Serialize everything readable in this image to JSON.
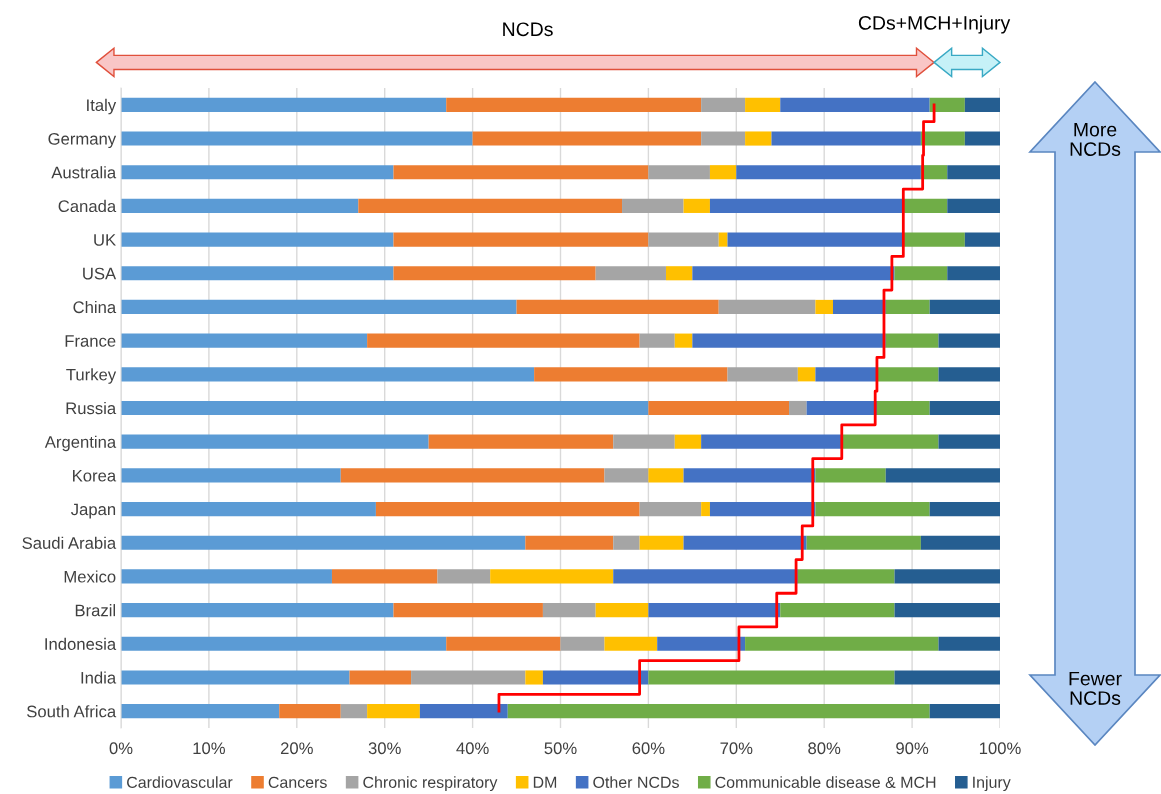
{
  "chart_data": {
    "type": "bar",
    "orientation": "horizontal",
    "stacked": true,
    "categories": [
      "Italy",
      "Germany",
      "Australia",
      "Canada",
      "UK",
      "USA",
      "China",
      "France",
      "Turkey",
      "Russia",
      "Argentina",
      "Korea",
      "Japan",
      "Saudi Arabia",
      "Mexico",
      "Brazil",
      "Indonesia",
      "India",
      "South Africa"
    ],
    "series": [
      {
        "name": "Cardiovascular",
        "color": "#5b9bd5",
        "values": [
          37,
          40,
          31,
          27,
          31,
          31,
          45,
          28,
          47,
          60,
          35,
          25,
          29,
          46,
          24,
          31,
          37,
          26,
          18
        ]
      },
      {
        "name": "Cancers",
        "color": "#ed7d31",
        "values": [
          29,
          26,
          29,
          30,
          29,
          23,
          23,
          31,
          22,
          16,
          21,
          30,
          30,
          10,
          12,
          17,
          13,
          7,
          7
        ]
      },
      {
        "name": "Chronic respiratory",
        "color": "#a5a5a5",
        "values": [
          5,
          5,
          7,
          7,
          8,
          8,
          11,
          4,
          8,
          2,
          7,
          5,
          7,
          3,
          6,
          6,
          5,
          13,
          3
        ]
      },
      {
        "name": "DM",
        "color": "#ffc000",
        "values": [
          4,
          3,
          3,
          3,
          1,
          3,
          2,
          2,
          2,
          0,
          3,
          4,
          1,
          5,
          14,
          6,
          6,
          2,
          6
        ]
      },
      {
        "name": "Other NCDs",
        "color": "#4472c4",
        "values": [
          17,
          17,
          21,
          22,
          20,
          23,
          6,
          22,
          7,
          8,
          16,
          15,
          12,
          14,
          21,
          15,
          10,
          12,
          10
        ]
      },
      {
        "name": "Communicable disease & MCH",
        "color": "#70ad47",
        "values": [
          4,
          5,
          3,
          5,
          7,
          6,
          5,
          6,
          7,
          6,
          11,
          8,
          13,
          13,
          11,
          13,
          22,
          28,
          48
        ]
      },
      {
        "name": "Injury",
        "color": "#255e91",
        "values": [
          4,
          4,
          6,
          6,
          4,
          6,
          8,
          7,
          7,
          8,
          7,
          13,
          8,
          9,
          12,
          12,
          7,
          12,
          8
        ]
      },
      {
        "type": "step",
        "color": "#ff0000",
        "values": [
          92.5,
          91.3,
          91.2,
          89,
          89,
          87.7,
          86.8,
          86.8,
          86,
          85.8,
          82,
          78.7,
          78.7,
          77.5,
          76.8,
          74.6,
          70.3,
          59,
          43
        ]
      }
    ],
    "xlim": [
      0,
      100
    ],
    "xticks": [
      {
        "value": 0,
        "label": "0%"
      },
      {
        "value": 10,
        "label": "10%"
      },
      {
        "value": 20,
        "label": "20%"
      },
      {
        "value": 30,
        "label": "30%"
      },
      {
        "value": 40,
        "label": "40%"
      },
      {
        "value": 50,
        "label": "50%"
      },
      {
        "value": 60,
        "label": "60%"
      },
      {
        "value": 70,
        "label": "70%"
      },
      {
        "value": 80,
        "label": "80%"
      },
      {
        "value": 90,
        "label": "90%"
      },
      {
        "value": 100,
        "label": "100%"
      }
    ],
    "grid": "x",
    "legend": "bottom",
    "annotations": [
      "NCDs",
      "CDs+MCH+Injury",
      "More\nNCDs",
      "Fewer\nNCDs"
    ]
  }
}
